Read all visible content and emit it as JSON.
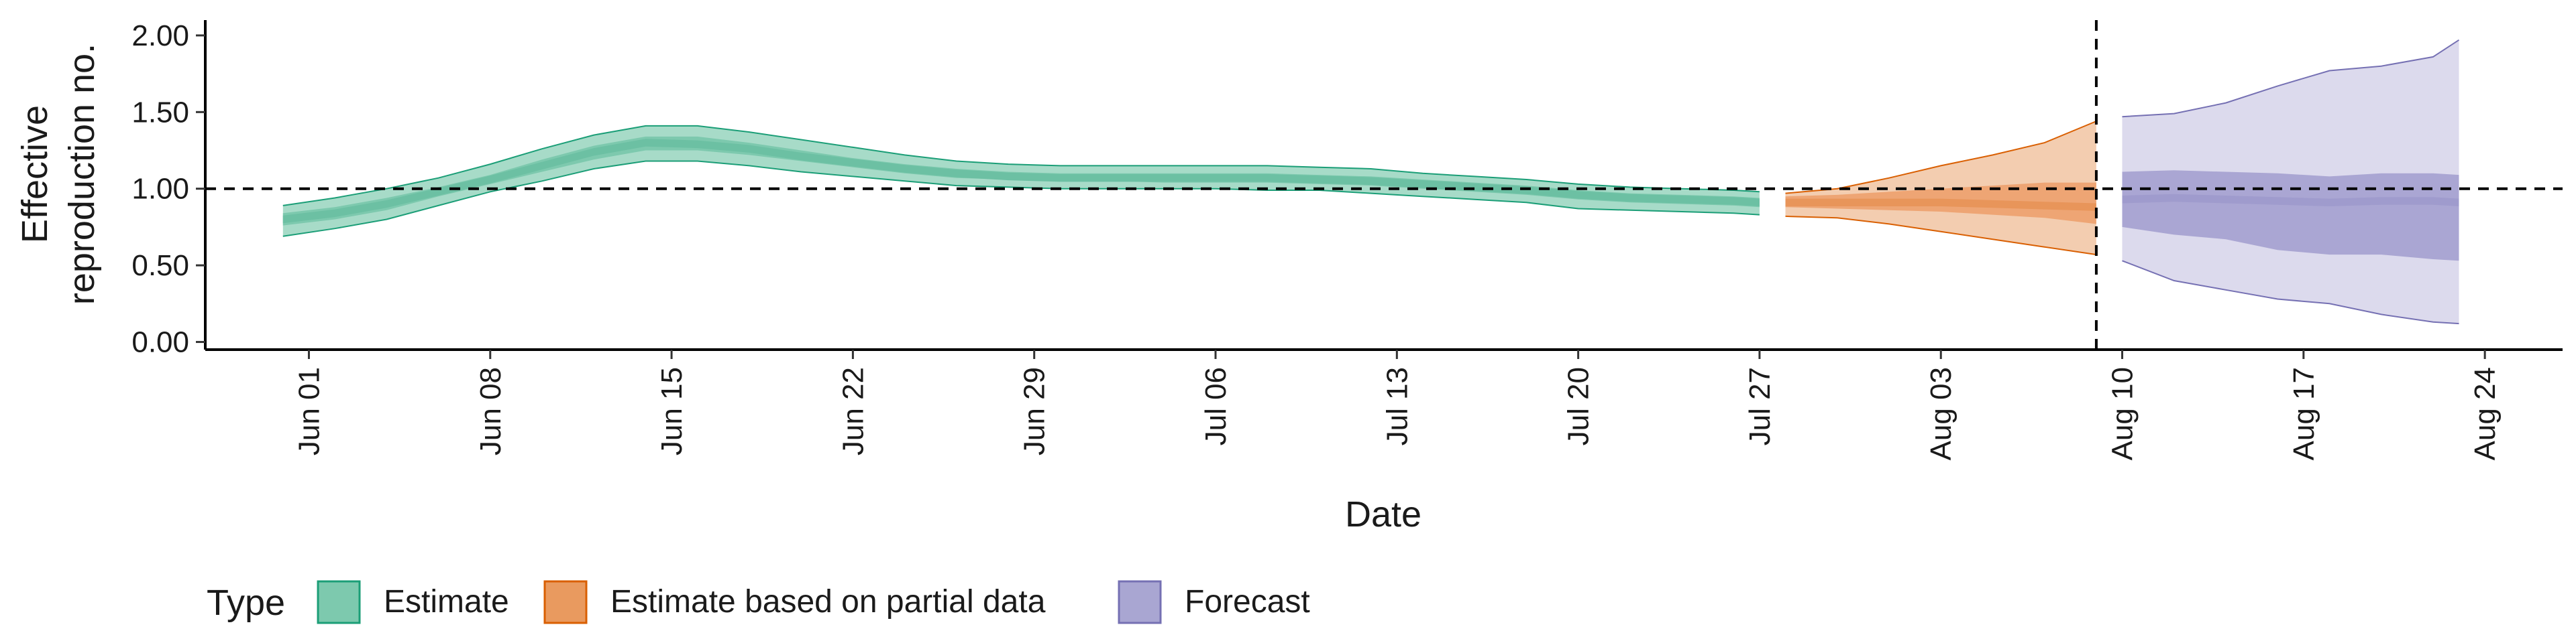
{
  "chart_data": {
    "type": "area",
    "xlabel": "Date",
    "ylabel": [
      "Effective",
      "reproduction no."
    ],
    "x_range": [
      "2020-05-28",
      "2020-08-27"
    ],
    "ylim": [
      -0.05,
      2.1
    ],
    "y_ticks": [
      0,
      0.5,
      1,
      1.5,
      2
    ],
    "y_tick_labels": [
      "0.00",
      "0.50",
      "1.00",
      "1.50",
      "2.00"
    ],
    "x_ticks": [
      "2020-06-01",
      "2020-06-08",
      "2020-06-15",
      "2020-06-22",
      "2020-06-29",
      "2020-07-06",
      "2020-07-13",
      "2020-07-20",
      "2020-07-27",
      "2020-08-03",
      "2020-08-10",
      "2020-08-17",
      "2020-08-24"
    ],
    "x_tick_labels": [
      "Jun 01",
      "Jun 08",
      "Jun 15",
      "Jun 22",
      "Jun 29",
      "Jul 06",
      "Jul 13",
      "Jul 20",
      "Jul 27",
      "Aug 03",
      "Aug 10",
      "Aug 17",
      "Aug 24"
    ],
    "hline": 1.0,
    "vline": "2020-08-09",
    "grid": false,
    "legend": {
      "title": "Type",
      "position": "bottom",
      "items": [
        {
          "label": "Estimate",
          "fill": "#7dc9ae",
          "stroke": "#1b9e77"
        },
        {
          "label": "Estimate based on partial data",
          "fill": "#e99a5f",
          "stroke": "#d95f02"
        },
        {
          "label": "Forecast",
          "fill": "#a9a6d2",
          "stroke": "#7570b3"
        }
      ]
    },
    "series": [
      {
        "name": "Estimate",
        "color": "#1b9e77",
        "outer_fill": "#a7dbc8",
        "inner_fill": "#7dc9ae",
        "median_fill": "#6cc0a3",
        "x": [
          "2020-05-31",
          "2020-06-02",
          "2020-06-04",
          "2020-06-06",
          "2020-06-08",
          "2020-06-10",
          "2020-06-12",
          "2020-06-14",
          "2020-06-16",
          "2020-06-18",
          "2020-06-20",
          "2020-06-22",
          "2020-06-24",
          "2020-06-26",
          "2020-06-28",
          "2020-06-30",
          "2020-07-02",
          "2020-07-04",
          "2020-07-06",
          "2020-07-08",
          "2020-07-10",
          "2020-07-12",
          "2020-07-14",
          "2020-07-16",
          "2020-07-18",
          "2020-07-20",
          "2020-07-22",
          "2020-07-24",
          "2020-07-26",
          "2020-07-27"
        ],
        "median": [
          0.8,
          0.84,
          0.9,
          0.98,
          1.06,
          1.15,
          1.24,
          1.3,
          1.29,
          1.26,
          1.21,
          1.17,
          1.13,
          1.1,
          1.08,
          1.07,
          1.07,
          1.07,
          1.07,
          1.07,
          1.06,
          1.05,
          1.03,
          1.01,
          0.99,
          0.96,
          0.94,
          0.93,
          0.92,
          0.91
        ],
        "inner_lower": [
          0.76,
          0.8,
          0.86,
          0.95,
          1.03,
          1.11,
          1.19,
          1.25,
          1.25,
          1.22,
          1.18,
          1.14,
          1.1,
          1.07,
          1.06,
          1.05,
          1.05,
          1.04,
          1.04,
          1.04,
          1.03,
          1.02,
          1.0,
          0.98,
          0.96,
          0.93,
          0.91,
          0.9,
          0.89,
          0.88
        ],
        "inner_upper": [
          0.84,
          0.88,
          0.94,
          1.01,
          1.09,
          1.19,
          1.28,
          1.34,
          1.34,
          1.3,
          1.25,
          1.2,
          1.16,
          1.13,
          1.11,
          1.1,
          1.1,
          1.1,
          1.1,
          1.1,
          1.09,
          1.08,
          1.06,
          1.04,
          1.02,
          0.99,
          0.97,
          0.96,
          0.95,
          0.94
        ],
        "outer_lower": [
          0.69,
          0.74,
          0.8,
          0.89,
          0.98,
          1.05,
          1.13,
          1.18,
          1.18,
          1.15,
          1.11,
          1.08,
          1.05,
          1.02,
          1.01,
          1.0,
          1.0,
          1.0,
          1.0,
          0.99,
          0.99,
          0.97,
          0.95,
          0.93,
          0.91,
          0.87,
          0.86,
          0.85,
          0.84,
          0.83
        ],
        "outer_upper": [
          0.89,
          0.94,
          1.0,
          1.07,
          1.16,
          1.26,
          1.35,
          1.41,
          1.41,
          1.37,
          1.32,
          1.27,
          1.22,
          1.18,
          1.16,
          1.15,
          1.15,
          1.15,
          1.15,
          1.15,
          1.14,
          1.13,
          1.1,
          1.08,
          1.06,
          1.03,
          1.01,
          1.0,
          0.99,
          0.98
        ]
      },
      {
        "name": "Estimate based on partial data",
        "color": "#d95f02",
        "outer_fill": "#f3cdb0",
        "inner_fill": "#eea574",
        "median_fill": "#e8955a",
        "x": [
          "2020-07-28",
          "2020-07-30",
          "2020-08-01",
          "2020-08-03",
          "2020-08-05",
          "2020-08-07",
          "2020-08-09"
        ],
        "median": [
          0.91,
          0.91,
          0.91,
          0.91,
          0.9,
          0.89,
          0.88
        ],
        "inner_lower": [
          0.88,
          0.87,
          0.86,
          0.85,
          0.83,
          0.81,
          0.77
        ],
        "inner_upper": [
          0.95,
          0.96,
          0.98,
          1.0,
          1.02,
          1.04,
          1.04
        ],
        "outer_lower": [
          0.82,
          0.81,
          0.77,
          0.72,
          0.67,
          0.62,
          0.57
        ],
        "outer_upper": [
          0.97,
          1.0,
          1.07,
          1.15,
          1.22,
          1.3,
          1.44
        ]
      },
      {
        "name": "Forecast",
        "color": "#7570b3",
        "outer_fill": "#dcdaed",
        "inner_fill": "#aaa6d3",
        "median_fill": "#9f9bcd",
        "x": [
          "2020-08-10",
          "2020-08-12",
          "2020-08-14",
          "2020-08-16",
          "2020-08-18",
          "2020-08-20",
          "2020-08-22",
          "2020-08-23"
        ],
        "median": [
          0.93,
          0.94,
          0.93,
          0.92,
          0.91,
          0.92,
          0.92,
          0.91
        ],
        "inner_lower": [
          0.75,
          0.7,
          0.67,
          0.6,
          0.57,
          0.57,
          0.54,
          0.53
        ],
        "inner_upper": [
          1.11,
          1.12,
          1.11,
          1.1,
          1.08,
          1.1,
          1.1,
          1.09
        ],
        "outer_lower": [
          0.53,
          0.4,
          0.34,
          0.28,
          0.25,
          0.18,
          0.13,
          0.12
        ],
        "outer_upper": [
          1.47,
          1.49,
          1.56,
          1.67,
          1.77,
          1.8,
          1.86,
          1.97
        ]
      }
    ]
  }
}
